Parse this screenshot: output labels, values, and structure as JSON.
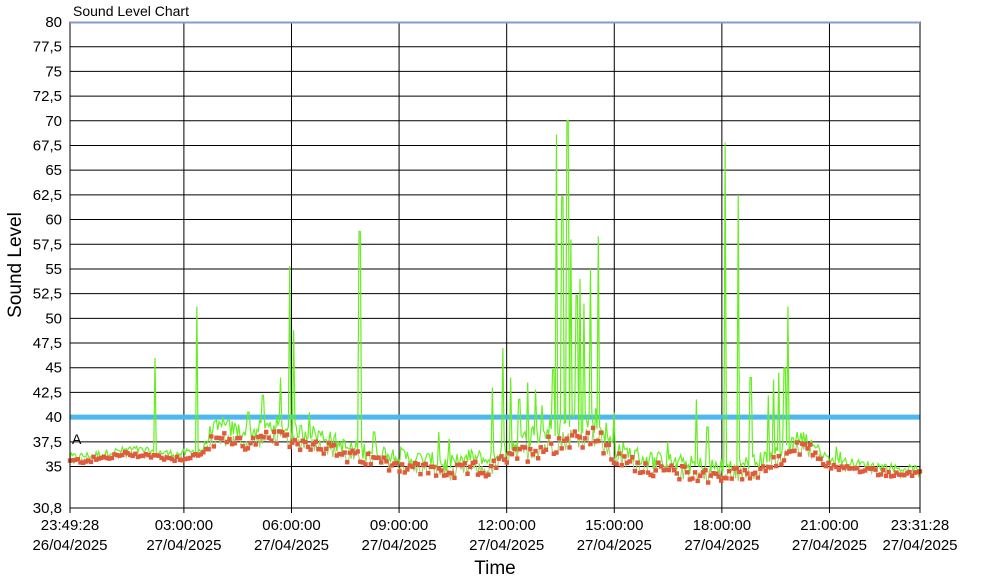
{
  "chart_data": {
    "type": "line",
    "title": "Sound Level Chart",
    "xlabel": "Time",
    "ylabel": "Sound Level",
    "ylim": [
      30.8,
      80
    ],
    "y_ticks": [
      "30,8",
      "35",
      "37,5",
      "40",
      "42,5",
      "45",
      "47,5",
      "50",
      "52,5",
      "55",
      "57,5",
      "60",
      "62,5",
      "65",
      "67,5",
      "70",
      "72,5",
      "75",
      "77,5",
      "80"
    ],
    "x_ticks": [
      {
        "time": "23:49:28",
        "date": "26/04/2025"
      },
      {
        "time": "03:00:00",
        "date": "27/04/2025"
      },
      {
        "time": "06:00:00",
        "date": "27/04/2025"
      },
      {
        "time": "09:00:00",
        "date": "27/04/2025"
      },
      {
        "time": "12:00:00",
        "date": "27/04/2025"
      },
      {
        "time": "15:00:00",
        "date": "27/04/2025"
      },
      {
        "time": "18:00:00",
        "date": "27/04/2025"
      },
      {
        "time": "21:00:00",
        "date": "27/04/2025"
      },
      {
        "time": "23:31:28",
        "date": "27/04/2025"
      }
    ],
    "x_range_hours": [
      23.8244,
      47.5244
    ],
    "threshold": {
      "value": 40,
      "color": "#4db8ef"
    },
    "marker_label": "A",
    "grid": true,
    "series": [
      {
        "color": "#66ee22",
        "kind": "max",
        "base": [
          [
            23.82,
            35.8
          ],
          [
            24.5,
            36.0
          ],
          [
            25.5,
            36.6
          ],
          [
            26.0,
            36.4
          ],
          [
            26.8,
            36.1
          ],
          [
            27.2,
            36.3
          ],
          [
            27.5,
            36.5
          ],
          [
            27.8,
            38.3
          ],
          [
            28.2,
            38.5
          ],
          [
            28.8,
            38.0
          ],
          [
            29.5,
            38.8
          ],
          [
            30.0,
            38.2
          ],
          [
            30.8,
            37.8
          ],
          [
            31.5,
            36.5
          ],
          [
            32.5,
            36.0
          ],
          [
            33.5,
            35.3
          ],
          [
            34.5,
            34.8
          ],
          [
            35.0,
            35.5
          ],
          [
            35.5,
            35.2
          ],
          [
            36.0,
            36.5
          ],
          [
            36.5,
            37.2
          ],
          [
            37.0,
            37.8
          ],
          [
            37.5,
            38.3
          ],
          [
            37.8,
            39.0
          ],
          [
            38.5,
            39.2
          ],
          [
            39.0,
            36.5
          ],
          [
            39.5,
            35.8
          ],
          [
            40.0,
            35.3
          ],
          [
            41.0,
            34.8
          ],
          [
            42.0,
            34.5
          ],
          [
            43.0,
            35.0
          ],
          [
            43.6,
            36.2
          ],
          [
            44.0,
            37.4
          ],
          [
            44.5,
            37.2
          ],
          [
            45.0,
            35.5
          ],
          [
            46.0,
            35.0
          ],
          [
            47.0,
            34.6
          ],
          [
            47.5244,
            34.5
          ]
        ],
        "spikes": [
          [
            26.2,
            46.0
          ],
          [
            27.35,
            51.2
          ],
          [
            28.1,
            40.0
          ],
          [
            28.8,
            40.5
          ],
          [
            29.2,
            42.2
          ],
          [
            29.7,
            44.0
          ],
          [
            29.95,
            55.3
          ],
          [
            30.05,
            48.8
          ],
          [
            30.5,
            40.5
          ],
          [
            31.9,
            58.8
          ],
          [
            32.3,
            38.5
          ],
          [
            34.1,
            38.5
          ],
          [
            34.4,
            37.8
          ],
          [
            35.6,
            43.0
          ],
          [
            35.9,
            47.0
          ],
          [
            36.1,
            44.0
          ],
          [
            36.35,
            41.8
          ],
          [
            36.6,
            43.5
          ],
          [
            36.8,
            42.8
          ],
          [
            37.0,
            41.2
          ],
          [
            37.3,
            44.8
          ],
          [
            37.4,
            68.6
          ],
          [
            37.55,
            62.3
          ],
          [
            37.7,
            70.0
          ],
          [
            37.8,
            58.0
          ],
          [
            37.95,
            52.3
          ],
          [
            38.05,
            54.0
          ],
          [
            38.15,
            51.5
          ],
          [
            38.35,
            55.0
          ],
          [
            38.55,
            58.3
          ],
          [
            39.0,
            40.5
          ],
          [
            40.5,
            37.5
          ],
          [
            41.3,
            41.8
          ],
          [
            41.6,
            39.0
          ],
          [
            42.1,
            67.8
          ],
          [
            42.45,
            62.5
          ],
          [
            42.8,
            44.0
          ],
          [
            43.3,
            42.2
          ],
          [
            43.45,
            43.8
          ],
          [
            43.6,
            44.5
          ],
          [
            43.75,
            45.0
          ],
          [
            43.85,
            51.2
          ],
          [
            44.1,
            38.5
          ],
          [
            44.6,
            36.0
          ],
          [
            45.2,
            37.0
          ],
          [
            45.3,
            36.5
          ]
        ]
      },
      {
        "color": "#e05a3c",
        "kind": "average",
        "base": [
          [
            23.82,
            35.5
          ],
          [
            24.5,
            35.7
          ],
          [
            25.5,
            36.3
          ],
          [
            26.0,
            36.1
          ],
          [
            26.8,
            35.8
          ],
          [
            27.2,
            36.0
          ],
          [
            27.5,
            36.2
          ],
          [
            27.8,
            37.5
          ],
          [
            28.2,
            37.8
          ],
          [
            28.8,
            37.3
          ],
          [
            29.5,
            38.0
          ],
          [
            30.0,
            37.5
          ],
          [
            30.8,
            37.2
          ],
          [
            31.5,
            36.0
          ],
          [
            32.5,
            35.5
          ],
          [
            33.5,
            34.8
          ],
          [
            34.5,
            34.3
          ],
          [
            35.0,
            34.8
          ],
          [
            35.5,
            34.6
          ],
          [
            36.0,
            35.8
          ],
          [
            36.5,
            36.5
          ],
          [
            37.0,
            37.0
          ],
          [
            37.5,
            37.5
          ],
          [
            37.8,
            38.0
          ],
          [
            38.5,
            38.0
          ],
          [
            39.0,
            35.8
          ],
          [
            39.5,
            35.3
          ],
          [
            40.0,
            34.8
          ],
          [
            41.0,
            34.3
          ],
          [
            42.0,
            34.0
          ],
          [
            43.0,
            34.5
          ],
          [
            43.6,
            35.5
          ],
          [
            44.0,
            36.8
          ],
          [
            44.5,
            36.5
          ],
          [
            45.0,
            35.0
          ],
          [
            46.0,
            34.6
          ],
          [
            47.0,
            34.2
          ],
          [
            47.5244,
            34.2
          ]
        ]
      }
    ]
  }
}
